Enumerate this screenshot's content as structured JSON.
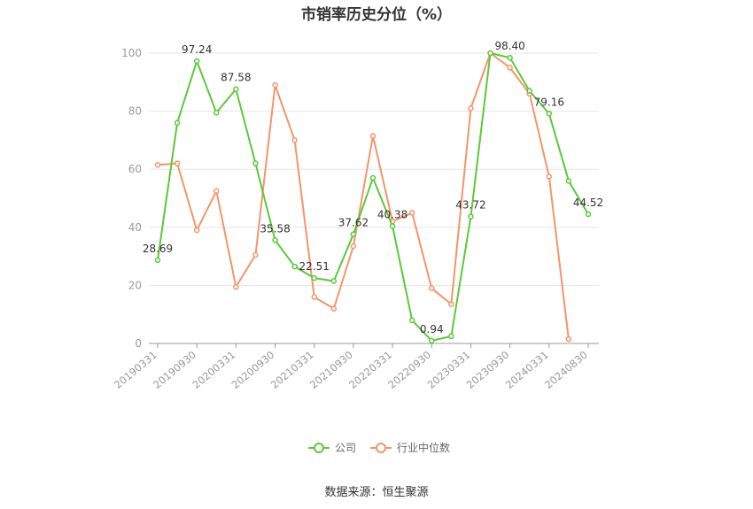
{
  "chart_data": {
    "type": "line",
    "title": "市销率历史分位（%）",
    "source": "数据来源：恒生聚源",
    "xlabel": "",
    "ylabel": "",
    "ylim": [
      0,
      100
    ],
    "yticks": [
      0,
      20,
      40,
      60,
      80,
      100
    ],
    "x": [
      "20190331",
      "20190630",
      "20190930",
      "20191231",
      "20200331",
      "20200630",
      "20200930",
      "20201231",
      "20210331",
      "20210630",
      "20210930",
      "20211231",
      "20220331",
      "20220630",
      "20220930",
      "20221231",
      "20230331",
      "20230630",
      "20230930",
      "20231231",
      "20240331",
      "20240630",
      "20240830"
    ],
    "x_tick_labels": [
      "20190331",
      "20190930",
      "20200331",
      "20200930",
      "20210331",
      "20210930",
      "20220331",
      "20220930",
      "20230331",
      "20230930",
      "20240331",
      "20240830"
    ],
    "grid": true,
    "legend_position": "bottom-center",
    "series": [
      {
        "name": "公司",
        "color": "#5cc93a",
        "values": [
          28.69,
          76.0,
          97.24,
          79.5,
          87.58,
          62.0,
          35.58,
          26.5,
          22.51,
          21.5,
          37.62,
          57.0,
          40.38,
          8.0,
          0.94,
          2.5,
          43.72,
          100.0,
          98.4,
          87.0,
          79.16,
          56.0,
          44.52
        ],
        "labels": {
          "0": "28.69",
          "2": "97.24",
          "4": "87.58",
          "6": "35.58",
          "8": "22.51",
          "10": "37.62",
          "12": "40.38",
          "14": "0.94",
          "16": "43.72",
          "18": "98.40",
          "20": "79.16",
          "22": "44.52"
        }
      },
      {
        "name": "行业中位数",
        "color": "#f4956a",
        "values": [
          61.5,
          62.0,
          39.0,
          52.5,
          19.5,
          30.5,
          89.0,
          70.0,
          16.0,
          12.0,
          33.5,
          71.5,
          42.0,
          45.0,
          19.0,
          13.5,
          81.0,
          100.0,
          95.0,
          86.0,
          57.5,
          1.5,
          null
        ]
      }
    ]
  }
}
